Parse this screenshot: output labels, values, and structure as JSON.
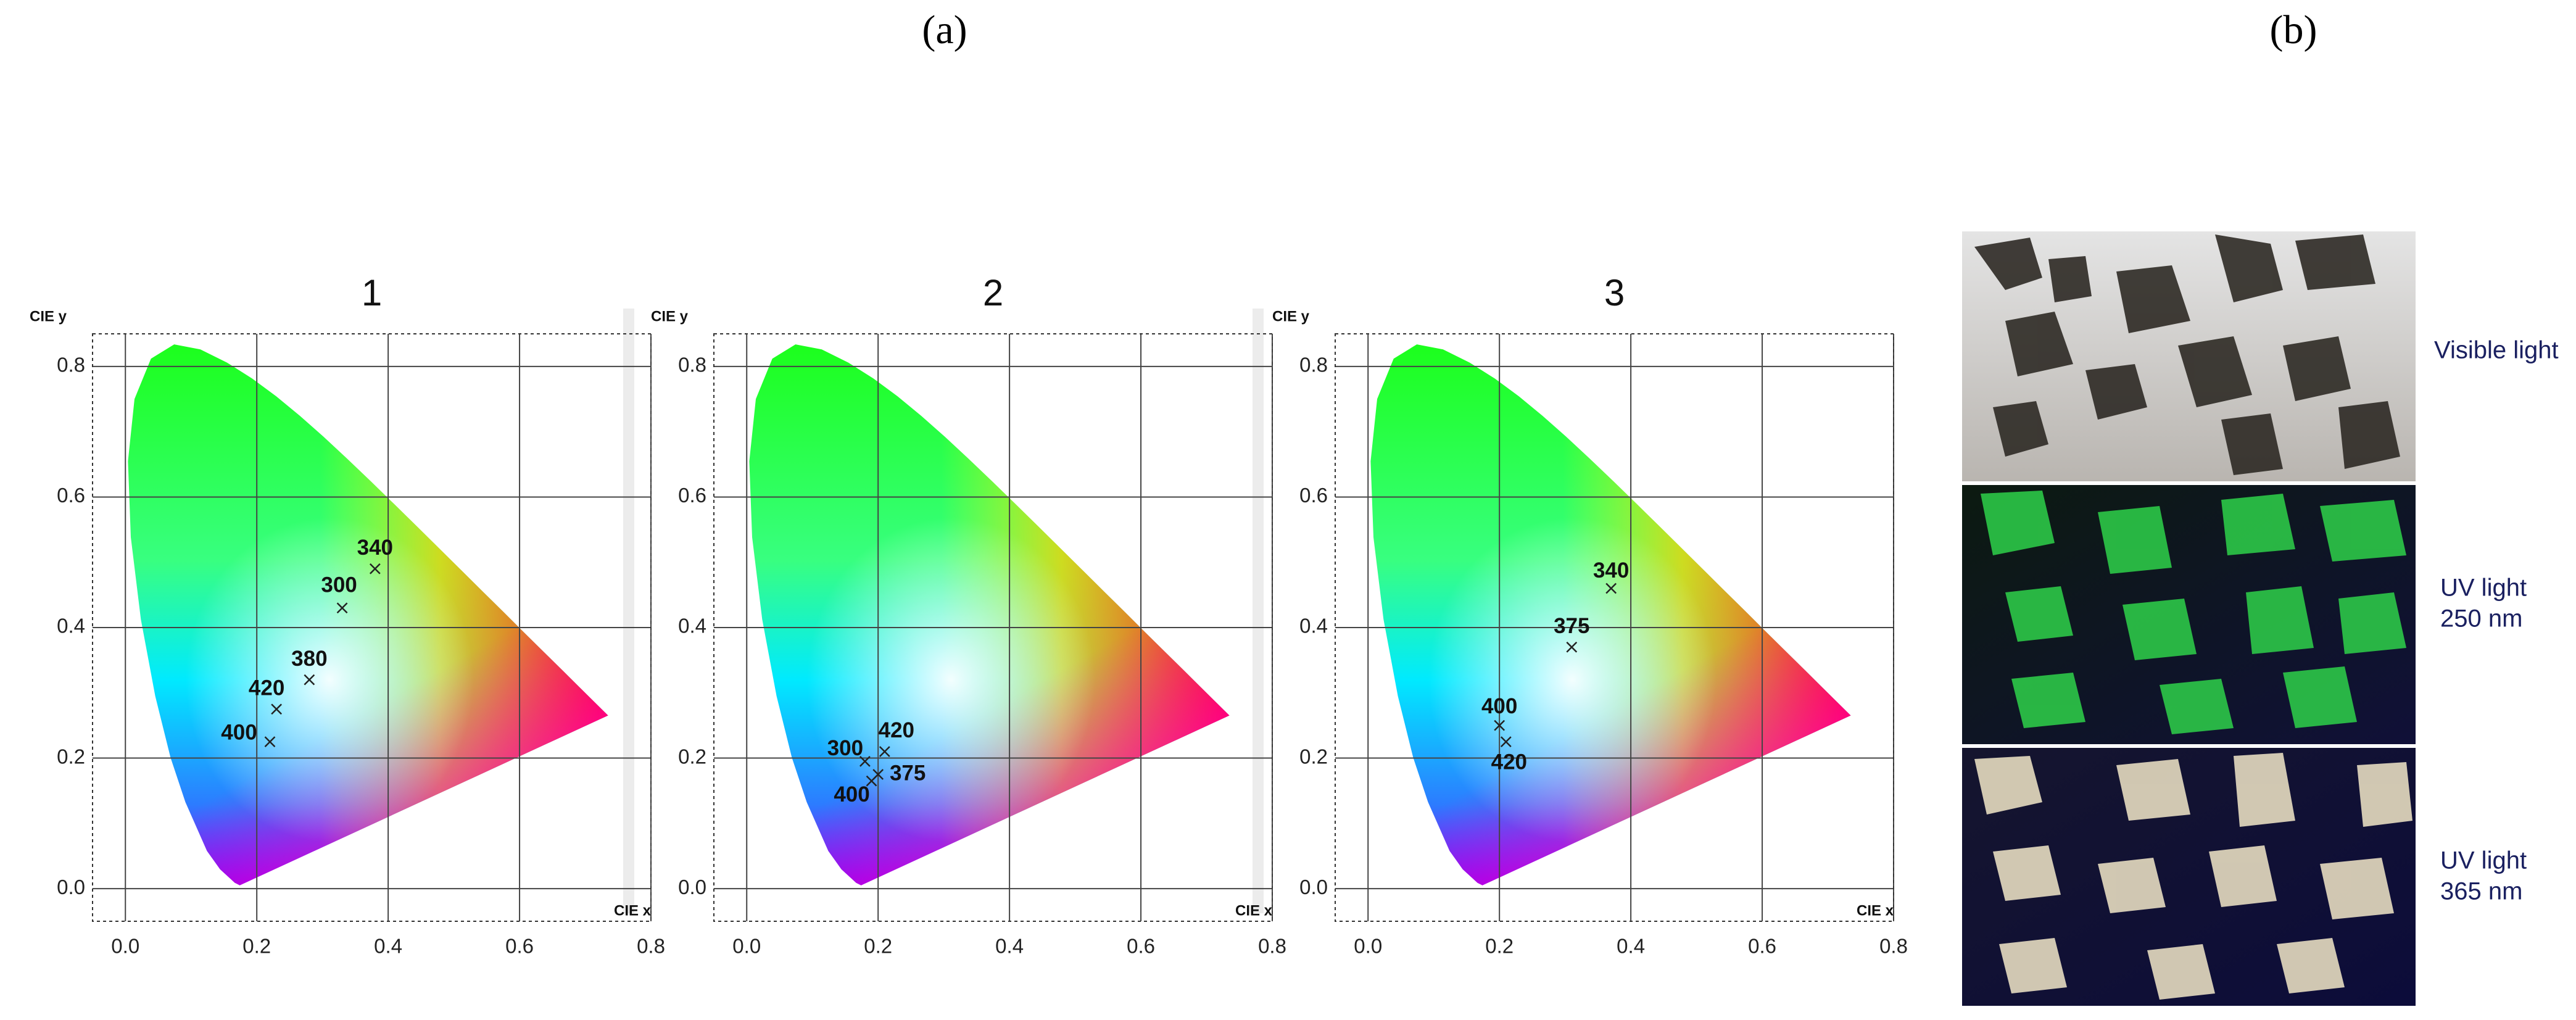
{
  "panel_labels": {
    "a": "(a)",
    "b": "(b)"
  },
  "chart_data": [
    {
      "type": "scatter",
      "title": "1",
      "xlabel": "CIE x",
      "ylabel": "CIE y",
      "xlim": [
        -0.05,
        0.8
      ],
      "ylim": [
        -0.05,
        0.85
      ],
      "xticks": [
        {
          "value": 0,
          "label": "0.0"
        },
        0.2,
        0.4,
        0.6,
        0.8
      ],
      "yticks": [
        {
          "value": 0,
          "label": "0.0"
        },
        0.2,
        0.4,
        0.6,
        0.8
      ],
      "grid": true,
      "labels": [
        "340",
        "300",
        "380",
        "420",
        "400"
      ],
      "x": [
        0.38,
        0.33,
        0.28,
        0.23,
        0.22
      ],
      "values": [
        0.49,
        0.43,
        0.32,
        0.275,
        0.225
      ]
    },
    {
      "type": "scatter",
      "title": "2",
      "xlabel": "CIE x",
      "ylabel": "CIE y",
      "xlim": [
        -0.05,
        0.8
      ],
      "ylim": [
        -0.05,
        0.85
      ],
      "xticks": [
        {
          "value": 0,
          "label": "0.0"
        },
        0.2,
        0.4,
        0.6,
        0.8
      ],
      "yticks": [
        {
          "value": 0,
          "label": "0.0"
        },
        0.2,
        0.4,
        0.6,
        0.8
      ],
      "grid": true,
      "labels": [
        "420",
        "300",
        "375",
        "400"
      ],
      "x": [
        0.21,
        0.18,
        0.2,
        0.19
      ],
      "values": [
        0.21,
        0.195,
        0.175,
        0.165
      ]
    },
    {
      "type": "scatter",
      "title": "3",
      "xlabel": "CIE x",
      "ylabel": "CIE y",
      "xlim": [
        -0.05,
        0.8
      ],
      "ylim": [
        -0.05,
        0.85
      ],
      "xticks": [
        {
          "value": 0,
          "label": "0.0"
        },
        0.2,
        0.4,
        0.6,
        0.8
      ],
      "yticks": [
        {
          "value": 0,
          "label": "0.0"
        },
        0.2,
        0.4,
        0.6,
        0.8
      ],
      "grid": true,
      "labels": [
        "340",
        "375",
        "400",
        "420"
      ],
      "x": [
        0.37,
        0.31,
        0.2,
        0.21
      ],
      "values": [
        0.46,
        0.37,
        0.25,
        0.225
      ]
    }
  ],
  "photos": [
    {
      "label": [
        "Visible light"
      ]
    },
    {
      "label": [
        "UV light",
        "250 nm"
      ]
    },
    {
      "label": [
        "UV light",
        "365 nm"
      ]
    }
  ]
}
